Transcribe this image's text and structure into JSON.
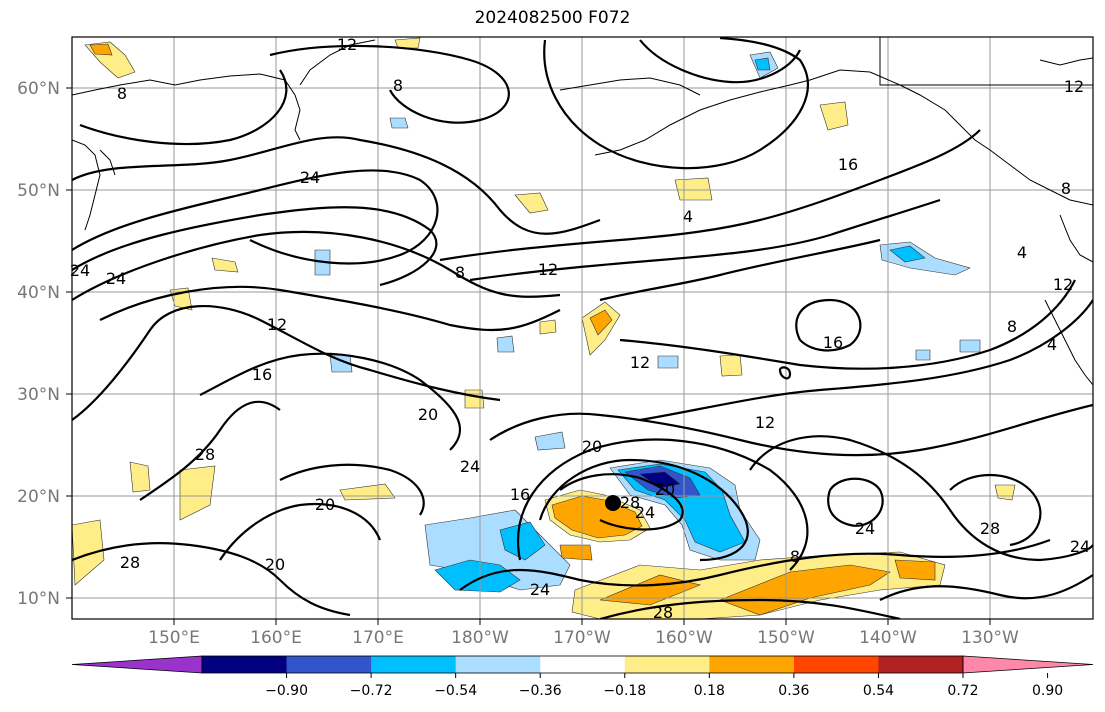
{
  "title": "2024082500 F072",
  "lat_labels": [
    "60°N",
    "50°N",
    "40°N",
    "30°N",
    "20°N",
    "10°N"
  ],
  "lon_labels": [
    "150°E",
    "160°E",
    "170°E",
    "180°W",
    "170°W",
    "160°W",
    "150°W",
    "140°W",
    "130°W"
  ],
  "contour_labels": [
    "12",
    "8",
    "8",
    "24",
    "24",
    "24",
    "12",
    "16",
    "20",
    "24",
    "28",
    "20",
    "20",
    "28",
    "8",
    "12",
    "4",
    "16",
    "16",
    "12",
    "20",
    "16",
    "20",
    "24",
    "28",
    "24",
    "28",
    "24",
    "28",
    "12",
    "8",
    "8",
    "4",
    "12",
    "4",
    "8",
    "12",
    "24"
  ],
  "colorbar": {
    "colors": [
      "#9933cc",
      "#000080",
      "#3355cc",
      "#00bfff",
      "#aaddff",
      "#ffffff",
      "#ffee88",
      "#ffa500",
      "#ff4500",
      "#b22222",
      "#ff88aa"
    ],
    "tick_labels": [
      "−0.90",
      "−0.72",
      "−0.54",
      "−0.36",
      "−0.18",
      "0.18",
      "0.36",
      "0.54",
      "0.72",
      "0.90"
    ]
  },
  "storm_marker": "hurricane-center"
}
